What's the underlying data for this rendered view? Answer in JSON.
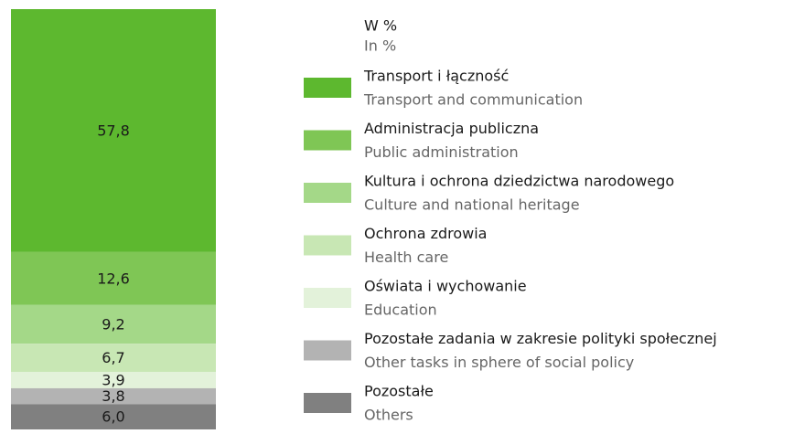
{
  "chart_data": {
    "type": "bar",
    "stacked": true,
    "legend_title": "W %",
    "legend_title_en": "In %",
    "categories": [
      null
    ],
    "ylim": [
      0,
      100
    ],
    "series": [
      {
        "name": "Transport i łączność",
        "name_en": "Transport and communication",
        "color": "#5db82f",
        "values": [
          57.8
        ],
        "value_labels": [
          "57,8"
        ]
      },
      {
        "name": "Administracja publiczna",
        "name_en": "Public administration",
        "color": "#7fc655",
        "values": [
          12.6
        ],
        "value_labels": [
          "12,6"
        ]
      },
      {
        "name": "Kultura i ochrona dziedzictwa narodowego",
        "name_en": "Culture and national heritage",
        "color": "#a4d888",
        "values": [
          9.2
        ],
        "value_labels": [
          "9,2"
        ]
      },
      {
        "name": "Ochrona zdrowia",
        "name_en": "Health care",
        "color": "#c8e7b4",
        "values": [
          6.7
        ],
        "value_labels": [
          "6,7"
        ]
      },
      {
        "name": "Oświata i wychowanie",
        "name_en": "Education",
        "color": "#e3f2da",
        "values": [
          3.9
        ],
        "value_labels": [
          "3,9"
        ]
      },
      {
        "name": "Pozostałe zadania w zakresie polityki społecznej",
        "name_en": "Other tasks in sphere of social policy",
        "color": "#b3b3b3",
        "values": [
          3.8
        ],
        "value_labels": [
          "3,8"
        ]
      },
      {
        "name": "Pozostałe",
        "name_en": "Others",
        "color": "#808080",
        "values": [
          6.0
        ],
        "value_labels": [
          "6,0"
        ]
      }
    ]
  }
}
